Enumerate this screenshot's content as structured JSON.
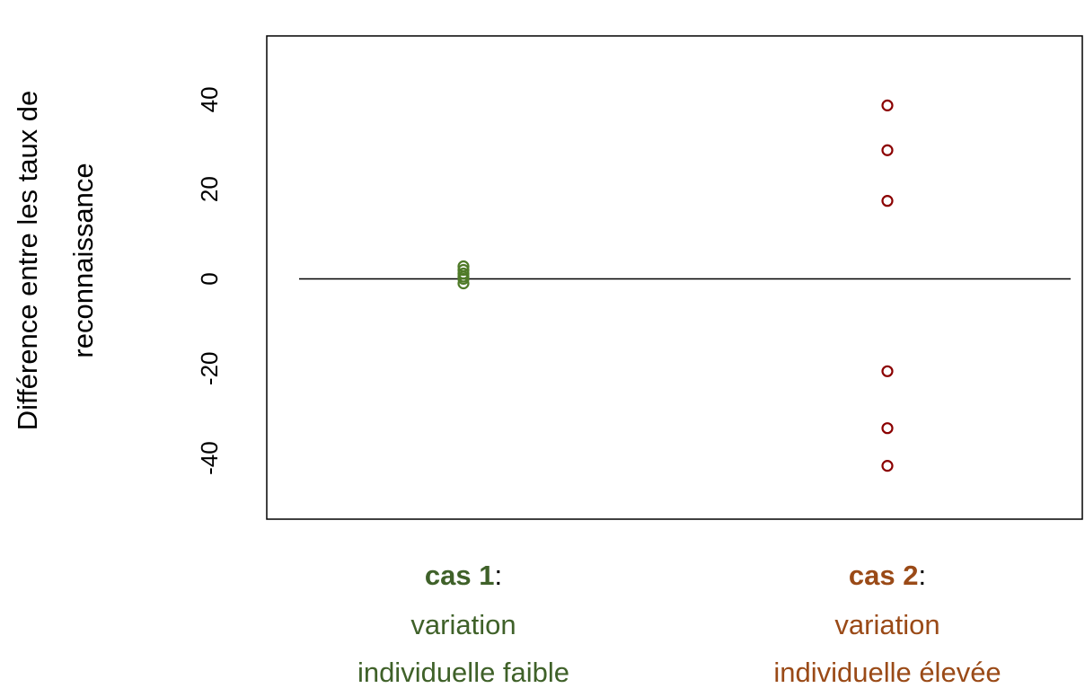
{
  "chart_data": {
    "type": "scatter",
    "ylabel": [
      "Différence entre les taux de",
      "reconnaissance"
    ],
    "categories": [
      "cas 1",
      "cas 2"
    ],
    "category_separator": ":",
    "category_details": [
      [
        "variation",
        "individuelle faible"
      ],
      [
        "variation",
        "individuelle élevée"
      ]
    ],
    "series": [
      {
        "color": "#4f7a28",
        "label_color": "#3f6129",
        "values": [
          2.8,
          2,
          1.2,
          0.5,
          0,
          -1
        ]
      },
      {
        "color": "#8b0000",
        "label_color": "#9a4a17",
        "values": [
          38.7,
          28.7,
          17.4,
          -20.6,
          -33.3,
          -41.7
        ]
      }
    ],
    "ylim": [
      -53.6,
      54.2
    ],
    "yticks": [
      -40,
      -20,
      0,
      20,
      40
    ],
    "reference_line": 0
  }
}
